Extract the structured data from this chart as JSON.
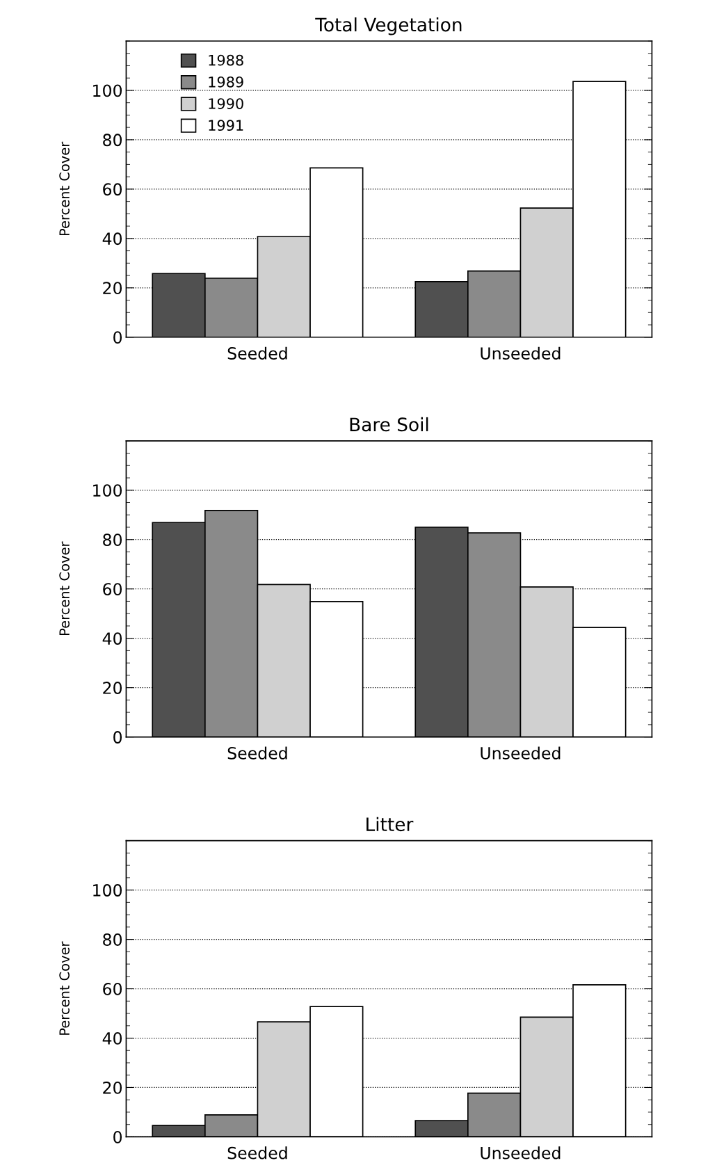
{
  "chart_data": [
    {
      "type": "bar",
      "title": "Total Vegetation",
      "ylabel": "Percent Cover",
      "categories": [
        "Seeded",
        "Unseeded"
      ],
      "ylim": [
        0,
        120
      ],
      "yticks": [
        0,
        20,
        40,
        60,
        80,
        100
      ],
      "grid": "y",
      "legend": "top left",
      "series": [
        {
          "name": "1988",
          "color": "#505050",
          "values": [
            25.8,
            22.5
          ]
        },
        {
          "name": "1989",
          "color": "#8a8a8a",
          "values": [
            23.9,
            26.8
          ]
        },
        {
          "name": "1990",
          "color": "#d0d0d0",
          "values": [
            40.8,
            52.3
          ]
        },
        {
          "name": "1991",
          "color": "#ffffff",
          "values": [
            68.6,
            103.6
          ]
        }
      ]
    },
    {
      "type": "bar",
      "title": "Bare Soil",
      "ylabel": "Percent Cover",
      "categories": [
        "Seeded",
        "Unseeded"
      ],
      "ylim": [
        0,
        120
      ],
      "yticks": [
        0,
        20,
        40,
        60,
        80,
        100
      ],
      "grid": "y",
      "series": [
        {
          "color": "#505050",
          "values": [
            86.9,
            85.0
          ]
        },
        {
          "color": "#8a8a8a",
          "values": [
            91.8,
            82.7
          ]
        },
        {
          "color": "#d0d0d0",
          "values": [
            61.8,
            60.8
          ]
        },
        {
          "color": "#ffffff",
          "values": [
            54.9,
            44.4
          ]
        }
      ]
    },
    {
      "type": "bar",
      "title": "Litter",
      "ylabel": "Percent Cover",
      "categories": [
        "Seeded",
        "Unseeded"
      ],
      "ylim": [
        0,
        120
      ],
      "yticks": [
        0,
        20,
        40,
        60,
        80,
        100
      ],
      "grid": "y",
      "series": [
        {
          "color": "#505050",
          "values": [
            4.6,
            6.6
          ]
        },
        {
          "color": "#8a8a8a",
          "values": [
            8.9,
            17.7
          ]
        },
        {
          "color": "#d0d0d0",
          "values": [
            46.6,
            48.5
          ]
        },
        {
          "color": "#ffffff",
          "values": [
            52.8,
            61.6
          ]
        }
      ]
    }
  ]
}
